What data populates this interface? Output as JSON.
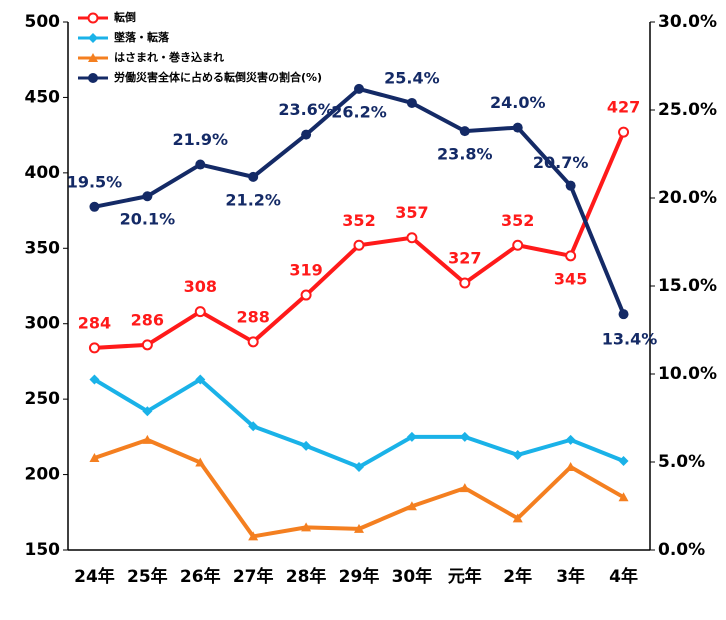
{
  "chart_data": {
    "type": "line",
    "categories": [
      "24年",
      "25年",
      "26年",
      "27年",
      "28年",
      "29年",
      "30年",
      "元年",
      "2年",
      "3年",
      "4年"
    ],
    "series": [
      {
        "name": "転倒",
        "color": "#ff1a1a",
        "values": [
          284,
          286,
          308,
          288,
          319,
          352,
          357,
          327,
          352,
          345,
          427
        ]
      },
      {
        "name": "墜落・転落",
        "color": "#1ab2e8",
        "values": [
          263,
          242,
          263,
          232,
          219,
          205,
          225,
          225,
          213,
          223,
          209
        ]
      },
      {
        "name": "はさまれ・巻き込まれ",
        "color": "#f47f20",
        "values": [
          211,
          223,
          208,
          159,
          165,
          164,
          179,
          191,
          171,
          205,
          185
        ]
      },
      {
        "name": "労働災害全体に占める転倒災害の割合(%)",
        "color": "#142a66",
        "axis": "y2",
        "values": [
          19.5,
          20.1,
          21.9,
          21.2,
          23.6,
          26.2,
          25.4,
          23.8,
          24.0,
          20.7,
          13.4
        ],
        "value_labels": [
          "19.5%",
          "20.1%",
          "21.9%",
          "21.2%",
          "23.6%",
          "26.2%",
          "25.4%",
          "23.8%",
          "24.0%",
          "20.7%",
          "13.4%"
        ]
      }
    ],
    "ylim": [
      150,
      500
    ],
    "yticks": [
      150,
      200,
      250,
      300,
      350,
      400,
      450,
      500
    ],
    "y2lim": [
      0,
      30
    ],
    "y2ticks": [
      {
        "value": 0,
        "label": "0.0%"
      },
      {
        "value": 5,
        "label": "5.0%"
      },
      {
        "value": 10,
        "label": "10.0%"
      },
      {
        "value": 15,
        "label": "15.0%"
      },
      {
        "value": 20,
        "label": "20.0%"
      },
      {
        "value": 25,
        "label": "25.0%"
      },
      {
        "value": 30,
        "label": "30.0%"
      }
    ]
  }
}
